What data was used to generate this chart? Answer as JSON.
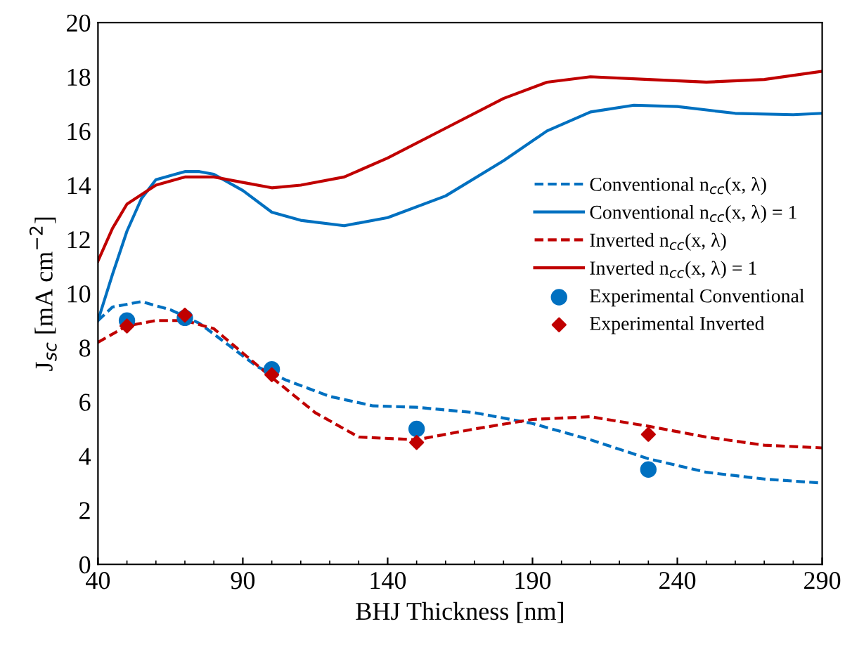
{
  "chart_data": {
    "type": "line",
    "xlabel": "BHJ Thickness [nm]",
    "ylabel": "J$_{sc}$ [mA cm$^{−2}$]",
    "xlim": [
      40,
      290
    ],
    "xticks": [
      40,
      90,
      140,
      190,
      240,
      290
    ],
    "ylim": [
      0,
      20
    ],
    "yticks": [
      0,
      2,
      4,
      6,
      8,
      10,
      12,
      14,
      16,
      18,
      20
    ],
    "grid": false,
    "legend": "right",
    "series": [
      {
        "name": "Conventional n$_{cc}$(x, λ)",
        "color": "#0070c0",
        "line_style": "dashed",
        "marker": "none",
        "x": [
          40,
          45,
          55,
          65,
          75,
          85,
          95,
          105,
          120,
          135,
          150,
          170,
          190,
          210,
          230,
          250,
          270,
          290
        ],
        "values": [
          9.0,
          9.5,
          9.7,
          9.4,
          8.9,
          8.1,
          7.3,
          6.8,
          6.2,
          5.85,
          5.8,
          5.6,
          5.2,
          4.6,
          3.9,
          3.4,
          3.15,
          3.0
        ]
      },
      {
        "name": "Conventional n$_{cc}$(x, λ) = 1",
        "color": "#0070c0",
        "line_style": "solid",
        "marker": "none",
        "x": [
          40,
          45,
          50,
          55,
          60,
          70,
          75,
          80,
          90,
          100,
          110,
          125,
          140,
          160,
          180,
          195,
          210,
          225,
          240,
          260,
          280,
          290
        ],
        "values": [
          9.0,
          10.7,
          12.3,
          13.5,
          14.2,
          14.5,
          14.5,
          14.4,
          13.8,
          13.0,
          12.7,
          12.5,
          12.8,
          13.6,
          14.9,
          16.0,
          16.7,
          16.95,
          16.9,
          16.65,
          16.6,
          16.65
        ]
      },
      {
        "name": "Inverted n$_{cc}$(x, λ)",
        "color": "#c00000",
        "line_style": "dashed",
        "marker": "none",
        "x": [
          40,
          50,
          60,
          70,
          80,
          90,
          100,
          115,
          130,
          150,
          170,
          190,
          210,
          230,
          250,
          270,
          290
        ],
        "values": [
          8.2,
          8.8,
          9.0,
          9.0,
          8.7,
          7.8,
          6.9,
          5.6,
          4.7,
          4.6,
          5.0,
          5.35,
          5.45,
          5.1,
          4.7,
          4.4,
          4.3
        ]
      },
      {
        "name": "Inverted n$_{cc}$(x, λ) = 1",
        "color": "#c00000",
        "line_style": "solid",
        "marker": "none",
        "x": [
          40,
          45,
          50,
          60,
          70,
          80,
          90,
          100,
          110,
          125,
          140,
          160,
          180,
          195,
          210,
          230,
          250,
          270,
          290
        ],
        "values": [
          11.2,
          12.4,
          13.3,
          14.0,
          14.3,
          14.3,
          14.1,
          13.9,
          14.0,
          14.3,
          15.0,
          16.1,
          17.2,
          17.8,
          18.0,
          17.9,
          17.8,
          17.9,
          18.2
        ]
      },
      {
        "name": "Experimental Conventional",
        "type": "scatter",
        "color": "#0070c0",
        "marker": "circle",
        "x": [
          50,
          70,
          100,
          150,
          230
        ],
        "values": [
          9.0,
          9.1,
          7.2,
          5.0,
          3.5
        ]
      },
      {
        "name": "Experimental Inverted",
        "type": "scatter",
        "color": "#c00000",
        "marker": "diamond",
        "x": [
          50,
          70,
          100,
          150,
          230
        ],
        "values": [
          8.8,
          9.2,
          7.0,
          4.5,
          4.8
        ]
      }
    ]
  }
}
